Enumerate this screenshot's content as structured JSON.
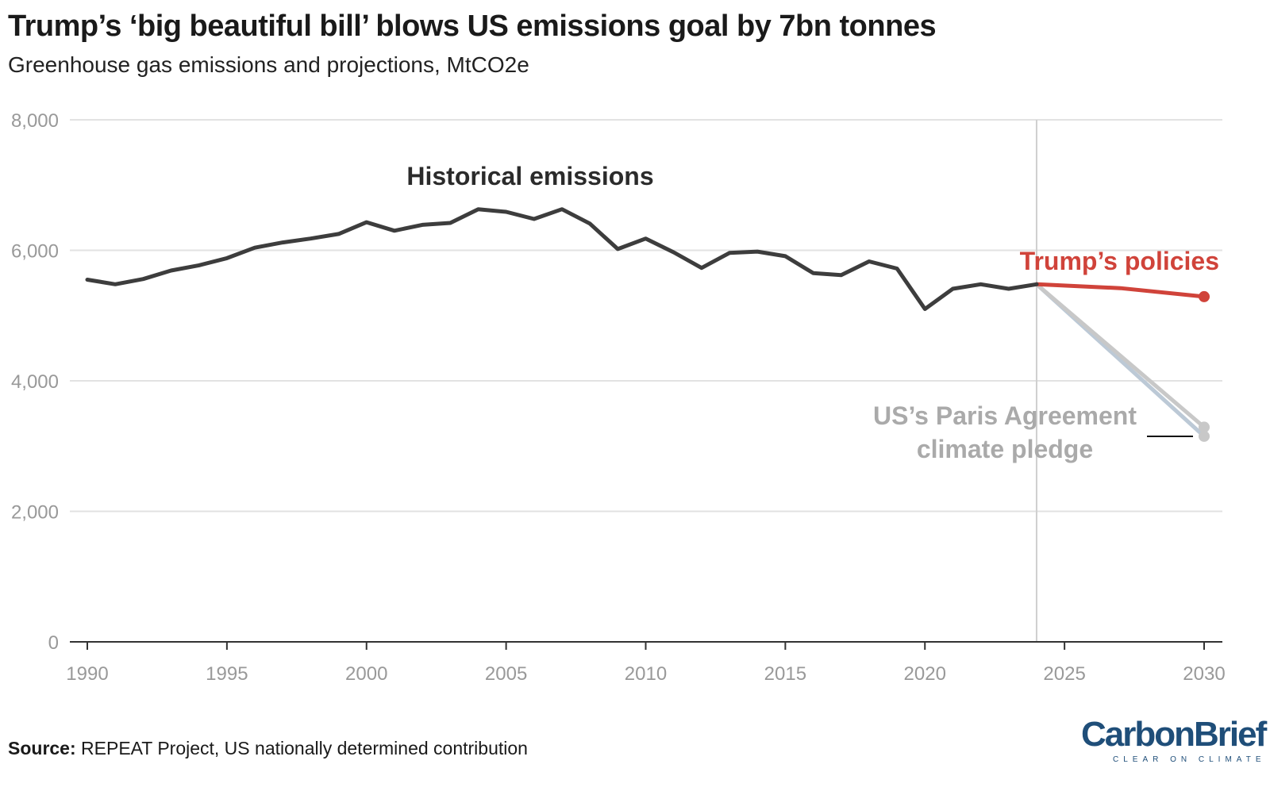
{
  "header": {
    "title": "Trump’s ‘big beautiful bill’ blows US emissions goal by 7bn tonnes",
    "subtitle": "Greenhouse gas emissions and projections, MtCO2e"
  },
  "footer": {
    "source_label": "Source:",
    "source_text": " REPEAT Project, US nationally determined contribution",
    "logo_word_a": "Carbon",
    "logo_word_b": "Brief",
    "logo_tagline": "CLEAR ON CLIMATE"
  },
  "colors": {
    "historical": "#3d3d3d",
    "trump": "#d0433a",
    "paris": "#c8c8c8",
    "grid": "#e2e2e2",
    "axis": "#333333",
    "divider": "#cfcfcf",
    "tick_text": "#999999"
  },
  "chart_data": {
    "type": "line",
    "title": "Trump’s ‘big beautiful bill’ blows US emissions goal by 7bn tonnes",
    "subtitle": "Greenhouse gas emissions and projections, MtCO2e",
    "xlim": [
      1990,
      2030
    ],
    "ylim": [
      0,
      8000
    ],
    "x_ticks": [
      1990,
      1995,
      2000,
      2005,
      2010,
      2015,
      2020,
      2025,
      2030
    ],
    "x_tick_labels": [
      "1990",
      "1995",
      "2000",
      "2005",
      "2010",
      "2015",
      "2020",
      "2025",
      "2030"
    ],
    "y_ticks": [
      0,
      2000,
      4000,
      6000,
      8000
    ],
    "y_tick_labels": [
      "0",
      "2,000",
      "4,000",
      "6,000",
      "8,000"
    ],
    "grid": true,
    "divider_year": 2024,
    "series": [
      {
        "key": "historical",
        "name": "Historical emissions",
        "x": [
          1990,
          1991,
          1992,
          1993,
          1994,
          1995,
          1996,
          1997,
          1998,
          1999,
          2000,
          2001,
          2002,
          2003,
          2004,
          2005,
          2006,
          2007,
          2008,
          2009,
          2010,
          2011,
          2012,
          2013,
          2014,
          2015,
          2016,
          2017,
          2018,
          2019,
          2020,
          2021,
          2022,
          2023,
          2024
        ],
        "y": [
          5550,
          5480,
          5560,
          5690,
          5770,
          5880,
          6040,
          6120,
          6180,
          6250,
          6430,
          6300,
          6390,
          6420,
          6630,
          6590,
          6480,
          6630,
          6410,
          6020,
          6180,
          5970,
          5730,
          5960,
          5980,
          5910,
          5650,
          5620,
          5830,
          5720,
          5100,
          5410,
          5480,
          5410,
          5480
        ]
      },
      {
        "key": "trump",
        "name": "Trump’s policies",
        "x": [
          2024,
          2027,
          2030
        ],
        "y": [
          5480,
          5420,
          5290
        ]
      },
      {
        "key": "paris",
        "name": "US’s Paris Agreement climate pledge",
        "name_lines": [
          "US’s Paris Agreement",
          "climate pledge"
        ],
        "x": [
          2024,
          2030
        ],
        "y": [
          5480,
          3290
        ],
        "x2": [
          2024,
          2030
        ],
        "y2": [
          5480,
          3150
        ]
      }
    ]
  }
}
